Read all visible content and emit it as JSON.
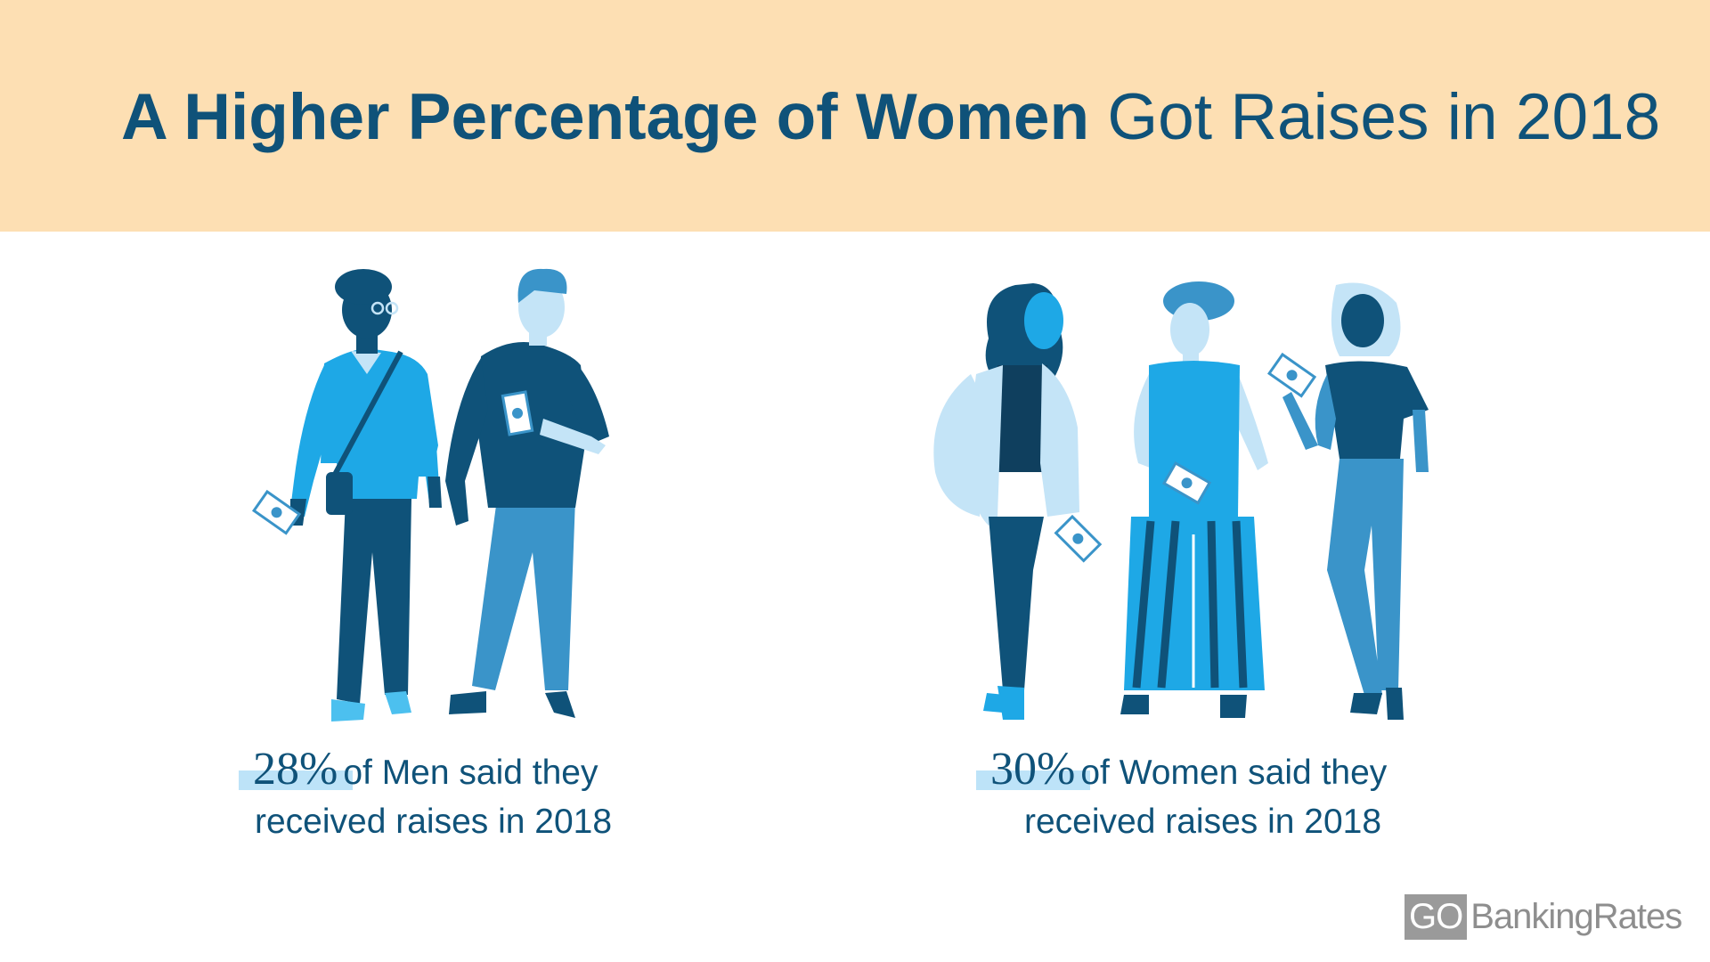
{
  "title": {
    "bold": "A Higher Percentage of Women",
    "light": "Got Raises in 2018"
  },
  "stats": [
    {
      "percent": "28%",
      "line1_rest": "of Men said they",
      "line2": "received raises in 2018"
    },
    {
      "percent": "30%",
      "line1_rest": "of Women said they",
      "line2": "received raises in 2018"
    }
  ],
  "logo": {
    "go": "GO",
    "rest": "BankingRates"
  },
  "colors": {
    "banner": "#fddfb3",
    "title": "#0f5279",
    "highlight": "#bde3f8",
    "dark_blue": "#0f5279",
    "mid_blue": "#3a94c9",
    "bright_blue": "#1ea8e6",
    "light_blue": "#c4e4f7",
    "logo_gray": "#9a9a9a"
  }
}
